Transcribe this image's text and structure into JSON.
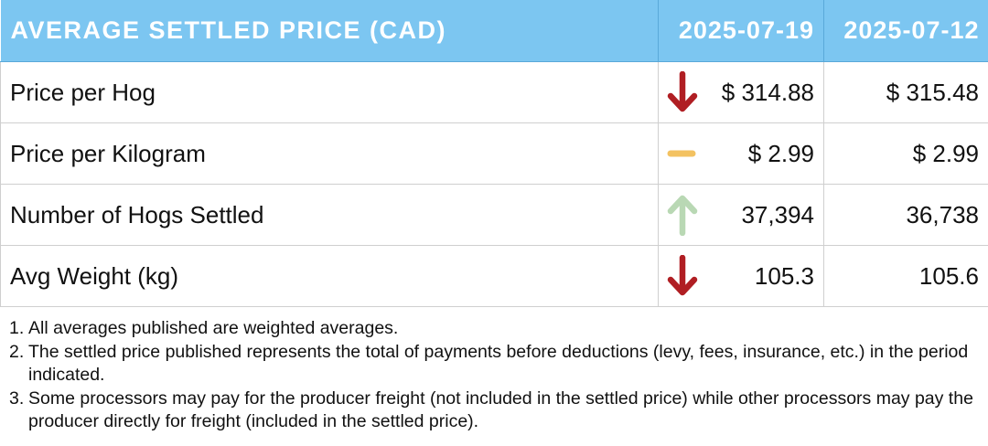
{
  "table": {
    "header_label": "AVERAGE SETTLED PRICE (CAD)",
    "date_current": "2025-07-19",
    "date_previous": "2025-07-12",
    "rows": [
      {
        "label": "Price per Hog",
        "current": "$ 314.88",
        "previous": "$ 315.48",
        "trend": "down"
      },
      {
        "label": "Price per Kilogram",
        "current": "$ 2.99",
        "previous": "$ 2.99",
        "trend": "flat"
      },
      {
        "label": "Number of Hogs Settled",
        "current": "37,394",
        "previous": "36,738",
        "trend": "up"
      },
      {
        "label": "Avg Weight (kg)",
        "current": "105.3",
        "previous": "105.6",
        "trend": "down"
      }
    ]
  },
  "colors": {
    "header_bg": "#7cc6f1",
    "down": "#b01e23",
    "flat": "#f3c261",
    "up": "#b9d8b4"
  },
  "icons": {
    "down": "arrow-down-icon",
    "flat": "dash-icon",
    "up": "arrow-up-icon"
  },
  "notes": [
    {
      "num": "1.",
      "text": "All averages published are weighted averages."
    },
    {
      "num": "2.",
      "text": "The settled price published represents the total of payments before deductions (levy, fees, insurance, etc.) in the period indicated."
    },
    {
      "num": "3.",
      "text": "Some processors may pay for the producer freight (not included in the settled price) while other processors may pay the producer directly for freight (included in the settled price)."
    }
  ]
}
